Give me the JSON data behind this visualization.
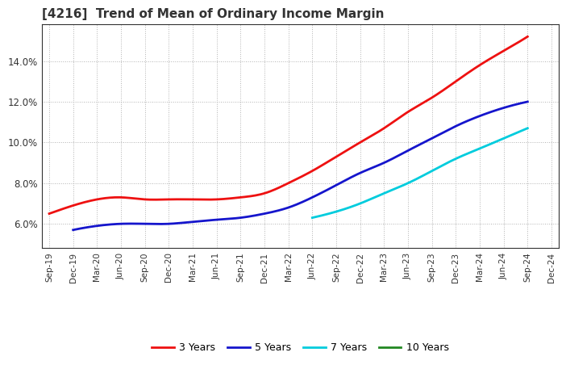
{
  "title": "[4216]  Trend of Mean of Ordinary Income Margin",
  "title_fontsize": 11,
  "title_color": "#333333",
  "background_color": "#ffffff",
  "plot_bg_color": "#ffffff",
  "grid_color": "#aaaaaa",
  "x_labels": [
    "Sep-19",
    "Dec-19",
    "Mar-20",
    "Jun-20",
    "Sep-20",
    "Dec-20",
    "Mar-21",
    "Jun-21",
    "Sep-21",
    "Dec-21",
    "Mar-22",
    "Jun-22",
    "Sep-22",
    "Dec-22",
    "Mar-23",
    "Jun-23",
    "Sep-23",
    "Dec-23",
    "Mar-24",
    "Jun-24",
    "Sep-24",
    "Dec-24"
  ],
  "ylim": [
    0.048,
    0.158
  ],
  "yticks": [
    0.06,
    0.08,
    0.1,
    0.12,
    0.14
  ],
  "ytick_labels": [
    "6.0%",
    "8.0%",
    "10.0%",
    "12.0%",
    "14.0%"
  ],
  "series": {
    "3 Years": {
      "color": "#ee1111",
      "values": [
        0.065,
        0.069,
        0.072,
        0.073,
        0.072,
        0.072,
        0.072,
        0.072,
        0.073,
        0.075,
        0.08,
        0.086,
        0.093,
        0.1,
        0.107,
        0.115,
        0.122,
        0.13,
        0.138,
        0.145,
        0.152,
        null
      ]
    },
    "5 Years": {
      "color": "#1515cc",
      "values": [
        null,
        0.057,
        0.059,
        0.06,
        0.06,
        0.06,
        0.061,
        0.062,
        0.063,
        0.065,
        0.068,
        0.073,
        0.079,
        0.085,
        0.09,
        0.096,
        0.102,
        0.108,
        0.113,
        0.117,
        0.12,
        null
      ]
    },
    "7 Years": {
      "color": "#00ccdd",
      "values": [
        null,
        null,
        null,
        null,
        null,
        null,
        null,
        null,
        null,
        null,
        null,
        0.063,
        0.066,
        0.07,
        0.075,
        0.08,
        0.086,
        0.092,
        0.097,
        0.102,
        0.107,
        null
      ]
    },
    "10 Years": {
      "color": "#228822",
      "values": [
        null,
        null,
        null,
        null,
        null,
        null,
        null,
        null,
        null,
        null,
        null,
        null,
        null,
        null,
        null,
        null,
        null,
        null,
        null,
        null,
        null,
        null
      ]
    }
  },
  "legend_entries": [
    "3 Years",
    "5 Years",
    "7 Years",
    "10 Years"
  ],
  "legend_colors": [
    "#ee1111",
    "#1515cc",
    "#00ccdd",
    "#228822"
  ]
}
